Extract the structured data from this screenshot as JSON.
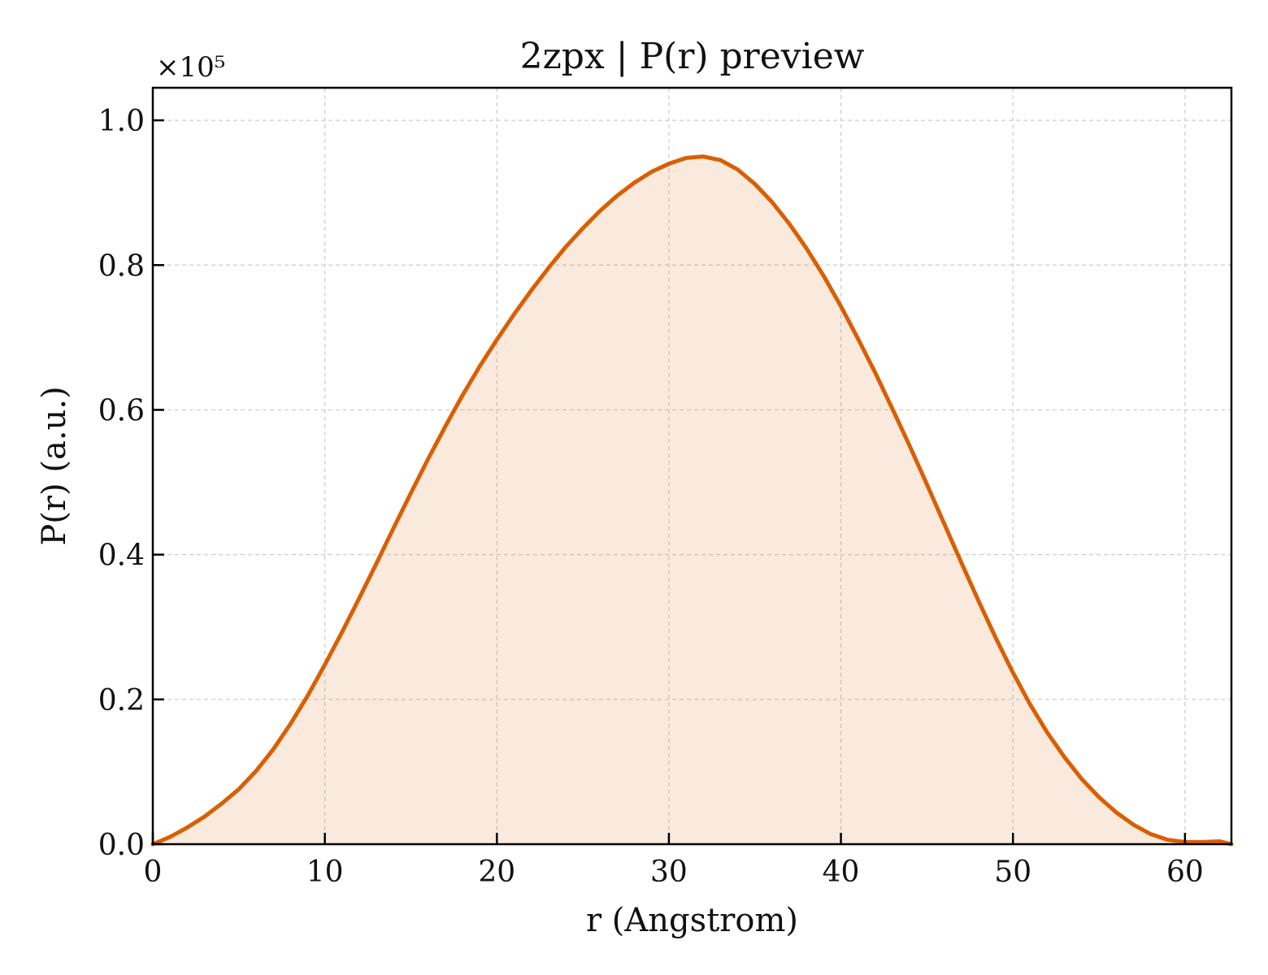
{
  "chart_data": {
    "type": "area",
    "title": "2zpx | P(r) preview",
    "xlabel": "r (Angstrom)",
    "ylabel": "P(r) (a.u.)",
    "y_multiplier_label": "×10⁵",
    "xlim": [
      0,
      62.7
    ],
    "ylim": [
      0,
      1.045
    ],
    "x_ticks": [
      0,
      10,
      20,
      30,
      40,
      50,
      60
    ],
    "x_tick_labels": [
      "0",
      "10",
      "20",
      "30",
      "40",
      "50",
      "60"
    ],
    "y_ticks": [
      0.0,
      0.2,
      0.4,
      0.6,
      0.8,
      1.0
    ],
    "y_tick_labels": [
      "0.0",
      "0.2",
      "0.4",
      "0.6",
      "0.8",
      "1.0"
    ],
    "grid": true,
    "colors": {
      "line": "#d95f02",
      "fill": "#d95f02",
      "fill_opacity": 0.13,
      "grid": "#cccccc",
      "axes": "#000000"
    },
    "series": [
      {
        "x": [
          0,
          1,
          2,
          3,
          4,
          5,
          6,
          7,
          8,
          9,
          10,
          11,
          12,
          13,
          14,
          15,
          16,
          17,
          18,
          19,
          20,
          21,
          22,
          23,
          24,
          25,
          26,
          27,
          28,
          29,
          30,
          31,
          32,
          33,
          34,
          35,
          36,
          37,
          38,
          39,
          40,
          41,
          42,
          43,
          44,
          45,
          46,
          47,
          48,
          49,
          50,
          51,
          52,
          53,
          54,
          55,
          56,
          57,
          58,
          59,
          60,
          61,
          62,
          62.7
        ],
        "y": [
          0.0,
          0.01,
          0.023,
          0.038,
          0.056,
          0.076,
          0.101,
          0.131,
          0.166,
          0.205,
          0.248,
          0.293,
          0.34,
          0.388,
          0.437,
          0.485,
          0.532,
          0.577,
          0.62,
          0.66,
          0.697,
          0.732,
          0.765,
          0.796,
          0.825,
          0.851,
          0.875,
          0.896,
          0.914,
          0.929,
          0.94,
          0.948,
          0.95,
          0.945,
          0.932,
          0.912,
          0.887,
          0.857,
          0.823,
          0.785,
          0.743,
          0.698,
          0.651,
          0.601,
          0.55,
          0.497,
          0.443,
          0.389,
          0.336,
          0.285,
          0.237,
          0.193,
          0.154,
          0.12,
          0.09,
          0.065,
          0.044,
          0.027,
          0.014,
          0.006,
          0.003,
          0.003,
          0.004,
          0.0
        ]
      }
    ]
  }
}
